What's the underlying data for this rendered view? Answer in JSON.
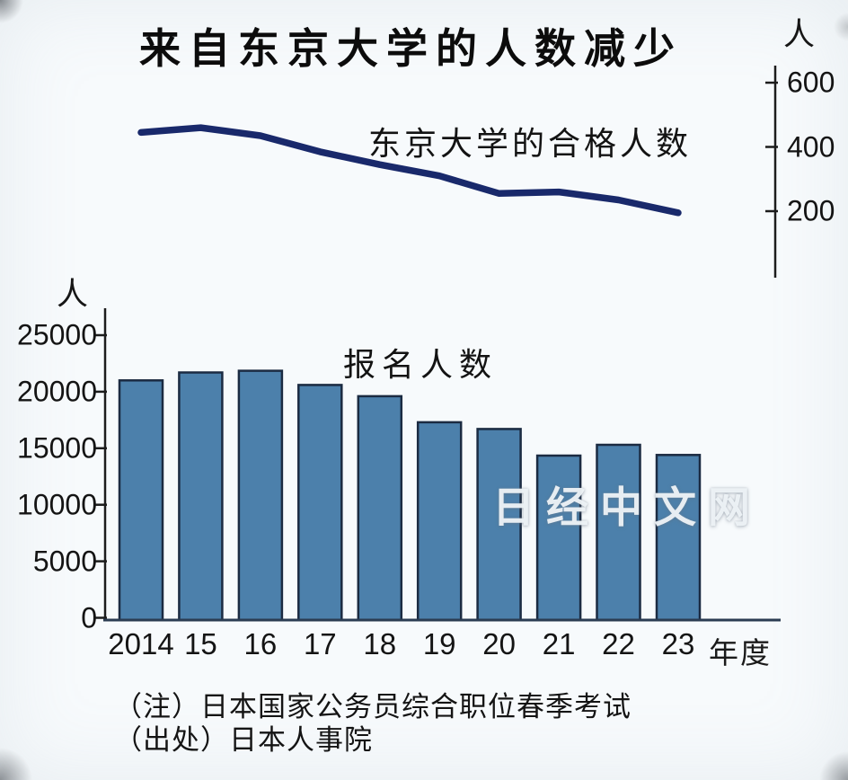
{
  "title": "来自东京大学的人数减少",
  "watermark": "日经中文网",
  "notes": [
    "（注）日本国家公务员综合职位春季考试",
    "（出处）日本人事院"
  ],
  "x_axis": {
    "labels": [
      "2014",
      "15",
      "16",
      "17",
      "18",
      "19",
      "20",
      "21",
      "22",
      "23"
    ],
    "unit_label": "年度"
  },
  "colors": {
    "bar_fill": "#4c80ab",
    "bar_border": "#1b2b42",
    "line": "#19296b",
    "axis": "#1c1c1c",
    "baseline": "#2b3c52",
    "background": "#f7fafc",
    "text": "#141414"
  },
  "chart_data": [
    {
      "type": "line",
      "name": "东京大学的合格人数",
      "label": "东京大学的合格人数",
      "unit": "人",
      "axis_side": "right",
      "grid": false,
      "categories": [
        "2014",
        "15",
        "16",
        "17",
        "18",
        "19",
        "20",
        "21",
        "22",
        "23"
      ],
      "values": [
        445,
        460,
        435,
        385,
        345,
        310,
        255,
        260,
        235,
        195
      ],
      "yticks": [
        600,
        400,
        200
      ],
      "ylim": [
        120,
        660
      ]
    },
    {
      "type": "bar",
      "name": "报名人数",
      "label": "报名人数",
      "unit": "人",
      "axis_side": "left",
      "grid": false,
      "categories": [
        "2014",
        "15",
        "16",
        "17",
        "18",
        "19",
        "20",
        "21",
        "22",
        "23"
      ],
      "values": [
        21000,
        21700,
        21850,
        20600,
        19600,
        17300,
        16700,
        14350,
        15300,
        14400
      ],
      "yticks": [
        25000,
        20000,
        15000,
        10000,
        5000,
        0
      ],
      "ylim": [
        0,
        26500
      ]
    }
  ]
}
